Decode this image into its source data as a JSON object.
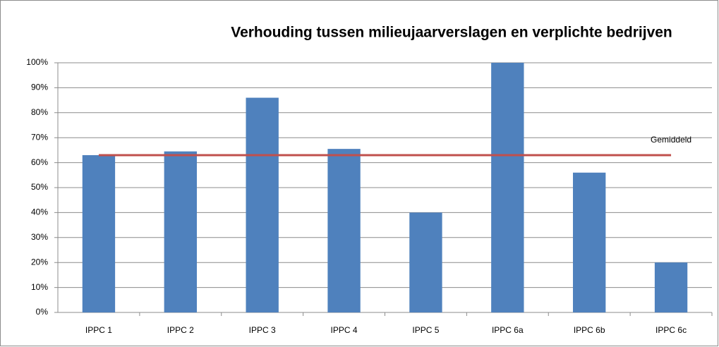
{
  "chart_data": {
    "type": "bar",
    "title": "Verhouding tussen milieujaarverslagen en verplichte bedrijven",
    "categories": [
      "IPPC 1",
      "IPPC 2",
      "IPPC 3",
      "IPPC 4",
      "IPPC 5",
      "IPPC 6a",
      "IPPC 6b",
      "IPPC 6c"
    ],
    "values": [
      63,
      64.5,
      86,
      65.5,
      40,
      100,
      56,
      20
    ],
    "color": "#4f81bd",
    "ylim": [
      0,
      100
    ],
    "yticks": [
      {
        "value": 0,
        "label": "0%"
      },
      {
        "value": 10,
        "label": "10%"
      },
      {
        "value": 20,
        "label": "20%"
      },
      {
        "value": 30,
        "label": "30%"
      },
      {
        "value": 40,
        "label": "40%"
      },
      {
        "value": 50,
        "label": "50%"
      },
      {
        "value": 60,
        "label": "60%"
      },
      {
        "value": 70,
        "label": "70%"
      },
      {
        "value": 80,
        "label": "80%"
      },
      {
        "value": 90,
        "label": "90%"
      },
      {
        "value": 100,
        "label": "100%"
      }
    ],
    "grid": true,
    "reference_line": {
      "value": 63,
      "label": "Gemiddeld",
      "color": "#c0504d"
    }
  }
}
